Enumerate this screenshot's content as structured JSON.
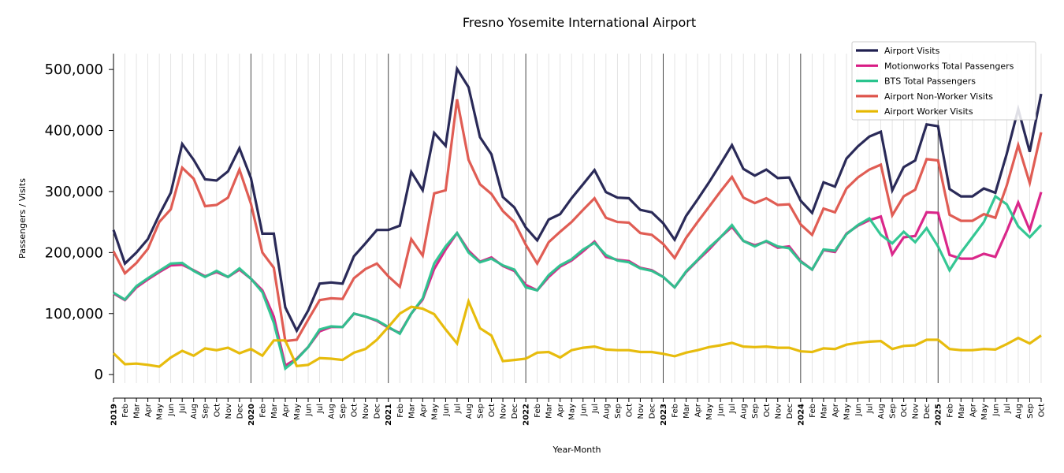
{
  "chart_data": {
    "type": "line",
    "title": "Fresno Yosemite International Airport",
    "xlabel": "Year-Month",
    "ylabel": "Passengers / Visits",
    "ylim": [
      -14000,
      526000
    ],
    "yticks": [
      0,
      100000,
      200000,
      300000,
      400000,
      500000
    ],
    "ytick_labels": [
      "0",
      "100,000",
      "200,000",
      "300,000",
      "400,000",
      "500,000"
    ],
    "grid": "vertical monthly, year boundaries dark",
    "legend_position": "top-right",
    "years": [
      "2019",
      "2020",
      "2021",
      "2022",
      "2023",
      "2024",
      "2025"
    ],
    "month_labels": [
      "Feb",
      "Mar",
      "Apr",
      "May",
      "Jun",
      "Jul",
      "Aug",
      "Sep",
      "Oct",
      "Nov",
      "Dec"
    ],
    "x_start": "2019-01",
    "x_end": "2025-10",
    "series": [
      {
        "name": "Airport Visits",
        "color": "#1f1f4f",
        "values": [
          237000,
          182000,
          200000,
          222000,
          262000,
          298000,
          378000,
          352000,
          320000,
          318000,
          333000,
          371000,
          322000,
          231000,
          231000,
          110000,
          72000,
          105000,
          149000,
          151000,
          149000,
          194000,
          215000,
          237000,
          237000,
          244000,
          332000,
          302000,
          396000,
          375000,
          501000,
          471000,
          389000,
          361000,
          291000,
          274000,
          241000,
          220000,
          254000,
          263000,
          289000,
          312000,
          335000,
          299000,
          290000,
          289000,
          270000,
          266000,
          248000,
          221000,
          260000,
          287000,
          315000,
          345000,
          376000,
          337000,
          326000,
          336000,
          322000,
          323000,
          285000,
          265000,
          315000,
          308000,
          354000,
          374000,
          390000,
          398000,
          302000,
          340000,
          351000,
          410000,
          407000,
          304000,
          292000,
          292000,
          305000,
          298000,
          362000,
          435000,
          365000,
          460000
        ]
      },
      {
        "name": "Motionworks Total Passengers",
        "color": "#d81b84",
        "values": [
          133000,
          122000,
          143000,
          156000,
          168000,
          179000,
          180000,
          171000,
          161000,
          168000,
          160000,
          172000,
          157000,
          138000,
          95000,
          15000,
          26000,
          45000,
          71000,
          78000,
          78000,
          100000,
          95000,
          88000,
          77000,
          68000,
          100000,
          123000,
          173000,
          205000,
          232000,
          203000,
          185000,
          192000,
          178000,
          170000,
          147000,
          138000,
          160000,
          177000,
          187000,
          202000,
          218000,
          193000,
          188000,
          186000,
          175000,
          171000,
          160000,
          143000,
          168000,
          187000,
          205000,
          225000,
          242000,
          219000,
          212000,
          218000,
          208000,
          210000,
          186000,
          172000,
          204000,
          201000,
          231000,
          244000,
          253000,
          259000,
          197000,
          225000,
          227000,
          266000,
          265000,
          196000,
          190000,
          190000,
          198000,
          193000,
          235000,
          282000,
          237000,
          299000
        ]
      },
      {
        "name": "BTS Total Passengers",
        "color": "#2ac48e",
        "values": [
          134000,
          123000,
          145000,
          158000,
          170000,
          182000,
          183000,
          170000,
          160000,
          170000,
          160000,
          174000,
          157000,
          135000,
          85000,
          10000,
          25000,
          45000,
          74000,
          79000,
          78000,
          100000,
          95000,
          89000,
          78000,
          67000,
          100000,
          125000,
          182000,
          210000,
          232000,
          200000,
          184000,
          190000,
          179000,
          172000,
          143000,
          138000,
          163000,
          179000,
          189000,
          205000,
          216000,
          196000,
          187000,
          184000,
          174000,
          170000,
          160000,
          143000,
          169000,
          188000,
          208000,
          225000,
          245000,
          219000,
          210000,
          219000,
          210000,
          207000,
          185000,
          172000,
          205000,
          203000,
          230000,
          245000,
          256000,
          229000,
          215000,
          234000,
          217000,
          240000,
          210000,
          171000,
          200000,
          225000,
          250000,
          292000,
          279000,
          243000,
          225000,
          245000
        ]
      },
      {
        "name": "Airport Non-Worker Visits",
        "color": "#de544b",
        "values": [
          202000,
          166000,
          183000,
          206000,
          250000,
          271000,
          339000,
          321000,
          276000,
          278000,
          290000,
          336000,
          280000,
          200000,
          175000,
          55000,
          57000,
          90000,
          122000,
          125000,
          124000,
          158000,
          173000,
          182000,
          161000,
          144000,
          222000,
          195000,
          297000,
          302000,
          451000,
          352000,
          312000,
          296000,
          268000,
          250000,
          213000,
          182000,
          217000,
          234000,
          250000,
          270000,
          289000,
          257000,
          250000,
          249000,
          232000,
          229000,
          214000,
          191000,
          224000,
          250000,
          275000,
          300000,
          324000,
          290000,
          281000,
          289000,
          278000,
          279000,
          246000,
          229000,
          272000,
          266000,
          305000,
          323000,
          336000,
          344000,
          261000,
          292000,
          303000,
          353000,
          351000,
          262000,
          252000,
          252000,
          263000,
          257000,
          310000,
          376000,
          314000,
          397000
        ]
      },
      {
        "name": "Airport Worker Visits",
        "color": "#e6b800",
        "values": [
          35000,
          17000,
          18000,
          16000,
          13000,
          28000,
          39000,
          31000,
          43000,
          40000,
          44000,
          35000,
          42000,
          31000,
          56000,
          56000,
          14000,
          16000,
          27000,
          26000,
          24000,
          36000,
          42000,
          57000,
          78000,
          100000,
          111000,
          108000,
          99000,
          74000,
          51000,
          120000,
          76000,
          64000,
          22000,
          24000,
          26000,
          36000,
          37000,
          28000,
          40000,
          44000,
          46000,
          41000,
          40000,
          40000,
          37000,
          37000,
          34000,
          30000,
          36000,
          40000,
          45000,
          48000,
          52000,
          46000,
          45000,
          46000,
          44000,
          44000,
          38000,
          37000,
          43000,
          42000,
          49000,
          52000,
          54000,
          55000,
          42000,
          47000,
          48000,
          57000,
          57000,
          42000,
          40000,
          40000,
          42000,
          41000,
          50000,
          60000,
          51000,
          64000
        ]
      }
    ]
  }
}
